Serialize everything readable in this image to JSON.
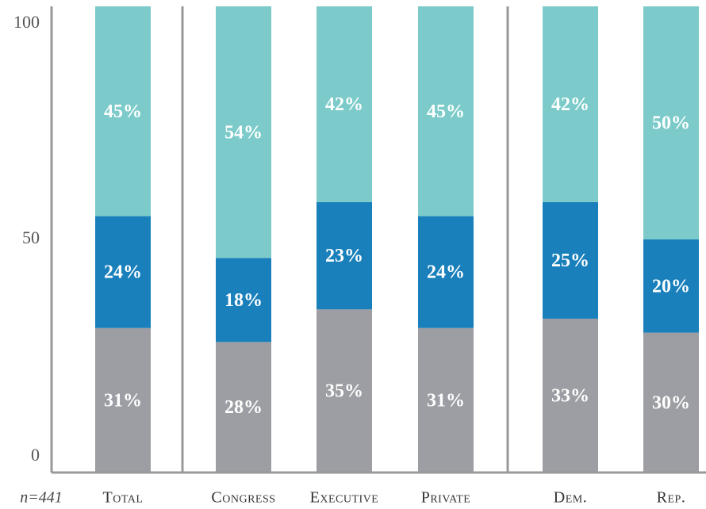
{
  "chart_data": {
    "type": "stacked_bar",
    "note": "n=441",
    "categories": [
      "Total",
      "Congress",
      "Executive",
      "Private",
      "Dem.",
      "Rep."
    ],
    "series": [
      {
        "color": "#9d9ea3",
        "values": [
          31,
          28,
          35,
          31,
          33,
          30
        ],
        "value_labels": [
          "31%",
          "28%",
          "35%",
          "31%",
          "33%",
          "30%"
        ]
      },
      {
        "color": "#1a80bb",
        "values": [
          24,
          18,
          23,
          24,
          25,
          20
        ],
        "value_labels": [
          "24%",
          "18%",
          "23%",
          "24%",
          "25%",
          "20%"
        ]
      },
      {
        "color": "#7ccbca",
        "values": [
          45,
          54,
          42,
          45,
          42,
          50
        ],
        "value_labels": [
          "45%",
          "54%",
          "42%",
          "45%",
          "42%",
          "50%"
        ]
      }
    ],
    "ylim": [
      0,
      100
    ],
    "yticks": [
      0,
      50,
      100
    ]
  }
}
